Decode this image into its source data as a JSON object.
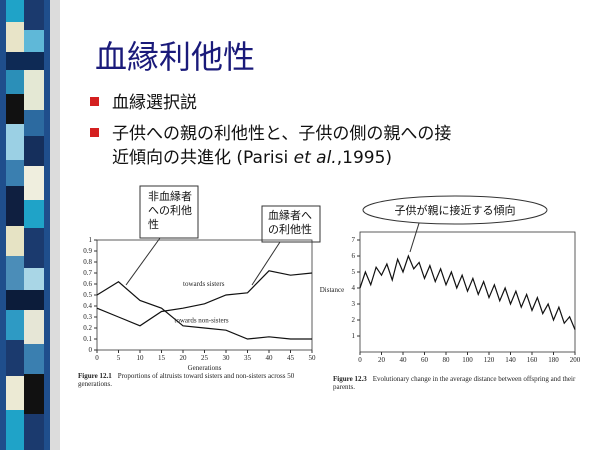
{
  "slide": {
    "title": "血縁利他性",
    "bullets": [
      {
        "lines": [
          [
            "血縁選択説"
          ]
        ]
      },
      {
        "lines": [
          [
            "子供への親の利他性と、子供の側の親への接"
          ],
          [
            "近傾向の共進化 (Parisi ",
            "et al.",
            ",1995)"
          ]
        ]
      }
    ],
    "callouts": [
      {
        "lines": [
          "非血縁者",
          "への利他",
          "性"
        ]
      },
      {
        "lines": [
          "血縁者へ",
          "の利他性"
        ]
      },
      {
        "lines": [
          "子供が親に接近する傾向"
        ]
      }
    ]
  },
  "chart_data": [
    {
      "type": "line",
      "xlabel": "Generations",
      "caption_label": "Figure 12.1",
      "caption": "Proportions of altruists toward sisters and non-sisters across 50 generations.",
      "x": [
        0,
        5,
        10,
        15,
        20,
        25,
        30,
        35,
        40,
        45,
        50
      ],
      "series": [
        {
          "name": "towards sisters",
          "color": "#111111",
          "values": [
            0.38,
            0.3,
            0.22,
            0.35,
            0.38,
            0.42,
            0.5,
            0.52,
            0.72,
            0.68,
            0.7
          ]
        },
        {
          "name": "towards non-sisters",
          "color": "#111111",
          "values": [
            0.5,
            0.62,
            0.45,
            0.38,
            0.22,
            0.2,
            0.18,
            0.1,
            0.12,
            0.1,
            0.1
          ]
        }
      ],
      "xlim": [
        0,
        50
      ],
      "xticks": [
        0,
        5,
        10,
        15,
        20,
        25,
        30,
        35,
        40,
        45,
        50
      ],
      "ylim": [
        0,
        1
      ],
      "yticks": [
        0,
        0.1,
        0.2,
        0.3,
        0.4,
        0.5,
        0.6,
        0.7,
        0.8,
        0.9,
        1
      ]
    },
    {
      "type": "line",
      "ylabel": "Distance",
      "caption_label": "Figure 12.3",
      "caption": "Evolutionary change in the average distance between offspring and their parents.",
      "x": [
        0,
        5,
        10,
        15,
        20,
        25,
        30,
        35,
        40,
        45,
        50,
        55,
        60,
        65,
        70,
        75,
        80,
        85,
        90,
        95,
        100,
        105,
        110,
        115,
        120,
        125,
        130,
        135,
        140,
        145,
        150,
        155,
        160,
        165,
        170,
        175,
        180,
        185,
        190,
        195,
        200
      ],
      "series": [
        {
          "name": "distance",
          "color": "#111111",
          "values": [
            4.0,
            5.0,
            4.2,
            5.3,
            4.8,
            5.5,
            4.5,
            5.8,
            5.0,
            6.0,
            5.2,
            5.6,
            4.6,
            5.4,
            4.4,
            5.2,
            4.2,
            5.0,
            4.0,
            4.8,
            3.8,
            4.6,
            3.6,
            4.4,
            3.4,
            4.2,
            3.2,
            4.0,
            3.0,
            3.8,
            2.8,
            3.6,
            2.6,
            3.4,
            2.4,
            3.0,
            2.0,
            2.8,
            1.8,
            2.2,
            1.4
          ]
        }
      ],
      "xlim": [
        0,
        200
      ],
      "xticks": [
        0,
        20,
        40,
        60,
        80,
        100,
        120,
        140,
        160,
        180,
        200
      ],
      "ylim": [
        0,
        7.5
      ],
      "yticks": [
        1,
        2,
        3,
        4,
        5,
        6,
        7
      ]
    }
  ]
}
